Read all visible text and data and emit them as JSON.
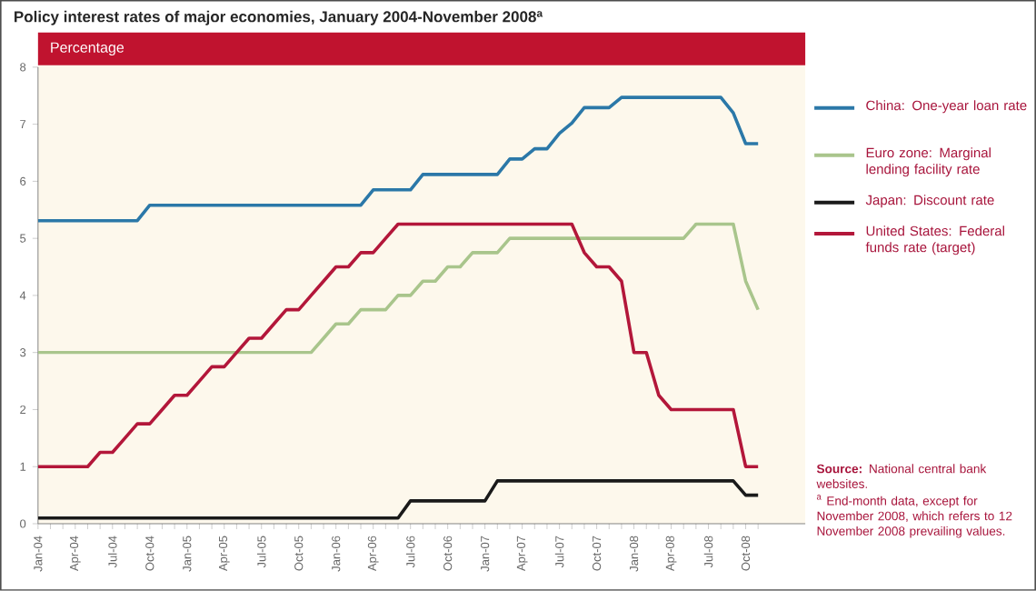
{
  "chart_data": {
    "type": "line",
    "title": "Policy interest rates of major economies, January 2004-November 2008$^{a}$",
    "ylabel": "Percentage",
    "categories": [
      "Jan-04",
      null,
      null,
      "Apr-04",
      null,
      null,
      "Jul-04",
      null,
      null,
      "Oct-04",
      null,
      null,
      "Jan-05",
      null,
      null,
      "Apr-05",
      null,
      null,
      "Jul-05",
      null,
      null,
      "Oct-05",
      null,
      null,
      "Jan-06",
      null,
      null,
      "Apr-06",
      null,
      null,
      "Jul-06",
      null,
      null,
      "Oct-06",
      null,
      null,
      "Jan-07",
      null,
      null,
      "Apr-07",
      null,
      null,
      "Jul-07",
      null,
      null,
      "Oct-07",
      null,
      null,
      "Jan-08",
      null,
      null,
      "Apr-08",
      null,
      null,
      "Jul-08",
      null,
      null,
      "Oct-08",
      null
    ],
    "series": [
      {
        "name": "China: One-year loan rate",
        "color": "#2b78a8",
        "values": [
          5.31,
          5.31,
          5.31,
          5.31,
          5.31,
          5.31,
          5.31,
          5.31,
          5.31,
          5.58,
          5.58,
          5.58,
          5.58,
          5.58,
          5.58,
          5.58,
          5.58,
          5.58,
          5.58,
          5.58,
          5.58,
          5.58,
          5.58,
          5.58,
          5.58,
          5.58,
          5.58,
          5.85,
          5.85,
          5.85,
          5.85,
          6.12,
          6.12,
          6.12,
          6.12,
          6.12,
          6.12,
          6.12,
          6.39,
          6.39,
          6.57,
          6.57,
          6.84,
          7.02,
          7.29,
          7.29,
          7.29,
          7.47,
          7.47,
          7.47,
          7.47,
          7.47,
          7.47,
          7.47,
          7.47,
          7.47,
          7.2,
          6.66,
          6.66
        ]
      },
      {
        "name": "Euro zone: Marginal lending facility rate",
        "color": "#a9c58c",
        "values": [
          3,
          3,
          3,
          3,
          3,
          3,
          3,
          3,
          3,
          3,
          3,
          3,
          3,
          3,
          3,
          3,
          3,
          3,
          3,
          3,
          3,
          3,
          3,
          3.25,
          3.5,
          3.5,
          3.75,
          3.75,
          3.75,
          4,
          4,
          4.25,
          4.25,
          4.5,
          4.5,
          4.75,
          4.75,
          4.75,
          5,
          5,
          5,
          5,
          5,
          5,
          5,
          5,
          5,
          5,
          5,
          5,
          5,
          5,
          5,
          5.25,
          5.25,
          5.25,
          5.25,
          4.25,
          3.75
        ]
      },
      {
        "name": "Japan: Discount rate",
        "color": "#1a1a1a",
        "values": [
          0.1,
          0.1,
          0.1,
          0.1,
          0.1,
          0.1,
          0.1,
          0.1,
          0.1,
          0.1,
          0.1,
          0.1,
          0.1,
          0.1,
          0.1,
          0.1,
          0.1,
          0.1,
          0.1,
          0.1,
          0.1,
          0.1,
          0.1,
          0.1,
          0.1,
          0.1,
          0.1,
          0.1,
          0.1,
          0.1,
          0.4,
          0.4,
          0.4,
          0.4,
          0.4,
          0.4,
          0.4,
          0.75,
          0.75,
          0.75,
          0.75,
          0.75,
          0.75,
          0.75,
          0.75,
          0.75,
          0.75,
          0.75,
          0.75,
          0.75,
          0.75,
          0.75,
          0.75,
          0.75,
          0.75,
          0.75,
          0.75,
          0.5,
          0.5
        ]
      },
      {
        "name": "United States: Federal funds rate (target)",
        "color": "#b3173a",
        "values": [
          1,
          1,
          1,
          1,
          1,
          1.25,
          1.25,
          1.5,
          1.75,
          1.75,
          2,
          2.25,
          2.25,
          2.5,
          2.75,
          2.75,
          3,
          3.25,
          3.25,
          3.5,
          3.75,
          3.75,
          4,
          4.25,
          4.5,
          4.5,
          4.75,
          4.75,
          5,
          5.25,
          5.25,
          5.25,
          5.25,
          5.25,
          5.25,
          5.25,
          5.25,
          5.25,
          5.25,
          5.25,
          5.25,
          5.25,
          5.25,
          5.25,
          4.75,
          4.5,
          4.5,
          4.25,
          3,
          3,
          2.25,
          2,
          2,
          2,
          2,
          2,
          2,
          1,
          1
        ]
      }
    ],
    "ylim": [
      0,
      8
    ],
    "yticks": [
      0,
      1,
      2,
      3,
      4,
      5,
      6,
      7,
      8
    ],
    "legend": "right",
    "annotations": [
      "**Source:** National central bank websites.",
      "$^{a}$ End-month data, except for November 2008, which refers to 12 November 2008 prevailing values."
    ]
  }
}
